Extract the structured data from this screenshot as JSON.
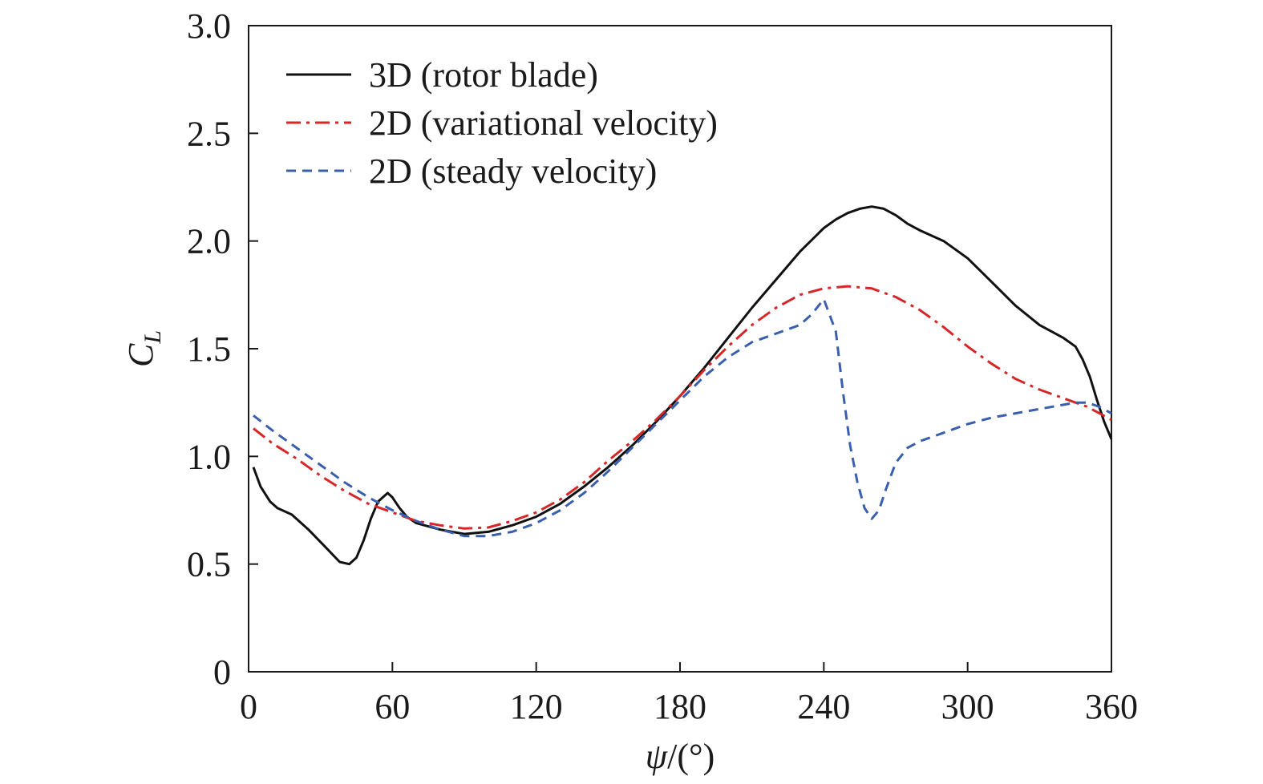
{
  "chart_data": {
    "type": "line",
    "title": "",
    "xlabel": "ψ/(°)",
    "xlabel_var": "ψ",
    "xlabel_unit": "/(°)",
    "ylabel": "C_L",
    "ylabel_main": "C",
    "ylabel_sub": "L",
    "xlim": [
      0,
      360
    ],
    "ylim": [
      0,
      3.0
    ],
    "xticks": [
      0,
      60,
      120,
      180,
      240,
      300,
      360
    ],
    "xtick_labels": [
      "0",
      "60",
      "120",
      "180",
      "240",
      "300",
      "360"
    ],
    "yticks": [
      0,
      0.5,
      1.0,
      1.5,
      2.0,
      2.5,
      3.0
    ],
    "ytick_labels": [
      "0",
      "0.5",
      "1.0",
      "1.5",
      "2.0",
      "2.5",
      "3.0"
    ],
    "grid": false,
    "legend_position": "top-left",
    "series": [
      {
        "name": "3D (rotor blade)",
        "color": "#111111",
        "style": "solid",
        "x": [
          2,
          5,
          9,
          12,
          18,
          25,
          32,
          38,
          42,
          45,
          48,
          51,
          54,
          58,
          60,
          63,
          66,
          70,
          80,
          90,
          100,
          110,
          120,
          130,
          140,
          150,
          160,
          170,
          180,
          190,
          200,
          210,
          220,
          230,
          240,
          245,
          250,
          255,
          260,
          265,
          270,
          275,
          280,
          290,
          300,
          310,
          320,
          330,
          340,
          345,
          348,
          351,
          354,
          357,
          360
        ],
        "y": [
          0.95,
          0.86,
          0.79,
          0.76,
          0.73,
          0.66,
          0.58,
          0.51,
          0.5,
          0.53,
          0.61,
          0.71,
          0.79,
          0.83,
          0.81,
          0.76,
          0.72,
          0.69,
          0.66,
          0.64,
          0.65,
          0.68,
          0.72,
          0.78,
          0.86,
          0.95,
          1.05,
          1.16,
          1.28,
          1.41,
          1.55,
          1.69,
          1.82,
          1.95,
          2.06,
          2.1,
          2.13,
          2.15,
          2.16,
          2.15,
          2.12,
          2.08,
          2.05,
          2.0,
          1.92,
          1.81,
          1.7,
          1.61,
          1.55,
          1.51,
          1.45,
          1.37,
          1.26,
          1.16,
          1.08
        ]
      },
      {
        "name": "2D (variational velocity)",
        "color": "#d62728",
        "style": "dashdot",
        "x": [
          2,
          10,
          20,
          30,
          40,
          50,
          60,
          70,
          80,
          90,
          100,
          110,
          120,
          130,
          140,
          150,
          160,
          170,
          180,
          190,
          200,
          210,
          220,
          230,
          240,
          250,
          260,
          270,
          280,
          290,
          300,
          310,
          320,
          330,
          340,
          350,
          360
        ],
        "y": [
          1.13,
          1.06,
          0.99,
          0.91,
          0.84,
          0.78,
          0.74,
          0.7,
          0.68,
          0.665,
          0.67,
          0.7,
          0.74,
          0.8,
          0.88,
          0.98,
          1.07,
          1.17,
          1.28,
          1.4,
          1.51,
          1.61,
          1.69,
          1.75,
          1.78,
          1.79,
          1.78,
          1.74,
          1.68,
          1.6,
          1.51,
          1.43,
          1.36,
          1.31,
          1.27,
          1.23,
          1.17
        ]
      },
      {
        "name": "2D (steady velocity)",
        "color": "#3a5fad",
        "style": "dashed",
        "x": [
          2,
          10,
          20,
          30,
          40,
          50,
          60,
          70,
          80,
          90,
          100,
          110,
          120,
          130,
          140,
          150,
          160,
          170,
          180,
          190,
          200,
          210,
          220,
          230,
          235,
          240,
          245,
          248,
          251,
          254,
          257,
          260,
          263,
          266,
          270,
          275,
          280,
          290,
          300,
          310,
          320,
          330,
          340,
          345,
          350,
          355,
          360
        ],
        "y": [
          1.19,
          1.12,
          1.04,
          0.96,
          0.88,
          0.81,
          0.75,
          0.7,
          0.66,
          0.63,
          0.63,
          0.65,
          0.69,
          0.75,
          0.83,
          0.93,
          1.04,
          1.15,
          1.26,
          1.37,
          1.46,
          1.53,
          1.57,
          1.61,
          1.66,
          1.73,
          1.58,
          1.3,
          1.05,
          0.88,
          0.76,
          0.71,
          0.75,
          0.85,
          0.97,
          1.04,
          1.07,
          1.11,
          1.15,
          1.18,
          1.2,
          1.22,
          1.24,
          1.25,
          1.25,
          1.23,
          1.2
        ]
      }
    ]
  }
}
